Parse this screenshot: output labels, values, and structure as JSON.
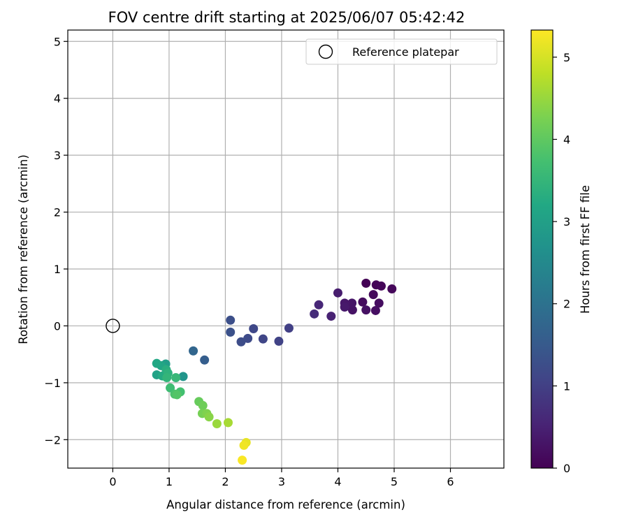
{
  "chart_data": {
    "type": "scatter",
    "title": "FOV centre drift starting at 2025/06/07 05:42:42",
    "xlabel": "Angular distance from reference (arcmin)",
    "ylabel": "Rotation from reference (arcmin)",
    "xlim": [
      -0.8,
      6.95
    ],
    "ylim": [
      -2.5,
      5.2
    ],
    "x_ticks": [
      0,
      1,
      2,
      3,
      4,
      5,
      6
    ],
    "y_ticks": [
      -2,
      -1,
      0,
      1,
      2,
      3,
      4,
      5
    ],
    "grid": true,
    "legend": {
      "position": "top-right",
      "entries": [
        "Reference platepar"
      ]
    },
    "reference_point": {
      "x": 0,
      "y": 0,
      "label": "Reference platepar"
    },
    "colorbar": {
      "label": "Hours from first FF file",
      "colormap": "viridis",
      "range": [
        0,
        5.33
      ],
      "ticks": [
        0,
        1,
        2,
        3,
        4,
        5
      ]
    },
    "points": [
      {
        "x": 4.5,
        "y": 0.75,
        "t": 0.02
      },
      {
        "x": 4.68,
        "y": 0.72,
        "t": 0.05
      },
      {
        "x": 4.77,
        "y": 0.7,
        "t": 0.08
      },
      {
        "x": 4.96,
        "y": 0.65,
        "t": 0.1
      },
      {
        "x": 4.63,
        "y": 0.55,
        "t": 0.13
      },
      {
        "x": 4.44,
        "y": 0.42,
        "t": 0.16
      },
      {
        "x": 4.73,
        "y": 0.4,
        "t": 0.19
      },
      {
        "x": 4.67,
        "y": 0.27,
        "t": 0.22
      },
      {
        "x": 4.5,
        "y": 0.28,
        "t": 0.25
      },
      {
        "x": 4.26,
        "y": 0.28,
        "t": 0.28
      },
      {
        "x": 4.25,
        "y": 0.4,
        "t": 0.31
      },
      {
        "x": 4.12,
        "y": 0.4,
        "t": 0.34
      },
      {
        "x": 4.12,
        "y": 0.33,
        "t": 0.37
      },
      {
        "x": 4.0,
        "y": 0.58,
        "t": 0.42
      },
      {
        "x": 3.88,
        "y": 0.17,
        "t": 0.5
      },
      {
        "x": 3.66,
        "y": 0.37,
        "t": 0.58
      },
      {
        "x": 3.58,
        "y": 0.21,
        "t": 0.66
      },
      {
        "x": 3.13,
        "y": -0.04,
        "t": 1.0
      },
      {
        "x": 2.95,
        "y": -0.27,
        "t": 1.05
      },
      {
        "x": 2.67,
        "y": -0.23,
        "t": 1.1
      },
      {
        "x": 2.5,
        "y": -0.05,
        "t": 1.15
      },
      {
        "x": 2.4,
        "y": -0.22,
        "t": 1.2
      },
      {
        "x": 2.28,
        "y": -0.28,
        "t": 1.25
      },
      {
        "x": 2.09,
        "y": 0.1,
        "t": 1.28
      },
      {
        "x": 2.09,
        "y": -0.11,
        "t": 1.32
      },
      {
        "x": 1.63,
        "y": -0.6,
        "t": 1.58
      },
      {
        "x": 1.43,
        "y": -0.44,
        "t": 1.75
      },
      {
        "x": 1.25,
        "y": -0.89,
        "t": 2.75
      },
      {
        "x": 0.94,
        "y": -0.67,
        "t": 2.95
      },
      {
        "x": 0.78,
        "y": -0.86,
        "t": 3.05
      },
      {
        "x": 0.86,
        "y": -0.7,
        "t": 3.12
      },
      {
        "x": 0.78,
        "y": -0.66,
        "t": 3.18
      },
      {
        "x": 0.88,
        "y": -0.88,
        "t": 3.25
      },
      {
        "x": 0.95,
        "y": -0.77,
        "t": 3.32
      },
      {
        "x": 0.98,
        "y": -0.83,
        "t": 3.4
      },
      {
        "x": 0.96,
        "y": -0.91,
        "t": 3.48
      },
      {
        "x": 1.12,
        "y": -0.91,
        "t": 3.55
      },
      {
        "x": 1.02,
        "y": -1.09,
        "t": 3.65
      },
      {
        "x": 1.2,
        "y": -1.16,
        "t": 3.72
      },
      {
        "x": 1.1,
        "y": -1.2,
        "t": 3.8
      },
      {
        "x": 1.14,
        "y": -1.21,
        "t": 3.88
      },
      {
        "x": 1.53,
        "y": -1.33,
        "t": 4.08
      },
      {
        "x": 1.6,
        "y": -1.4,
        "t": 4.15
      },
      {
        "x": 1.59,
        "y": -1.54,
        "t": 4.22
      },
      {
        "x": 1.67,
        "y": -1.54,
        "t": 4.3
      },
      {
        "x": 1.71,
        "y": -1.6,
        "t": 4.38
      },
      {
        "x": 1.85,
        "y": -1.72,
        "t": 4.52
      },
      {
        "x": 2.05,
        "y": -1.7,
        "t": 4.62
      },
      {
        "x": 2.37,
        "y": -2.05,
        "t": 5.15
      },
      {
        "x": 2.33,
        "y": -2.1,
        "t": 5.22
      },
      {
        "x": 2.3,
        "y": -2.36,
        "t": 5.3
      }
    ]
  }
}
